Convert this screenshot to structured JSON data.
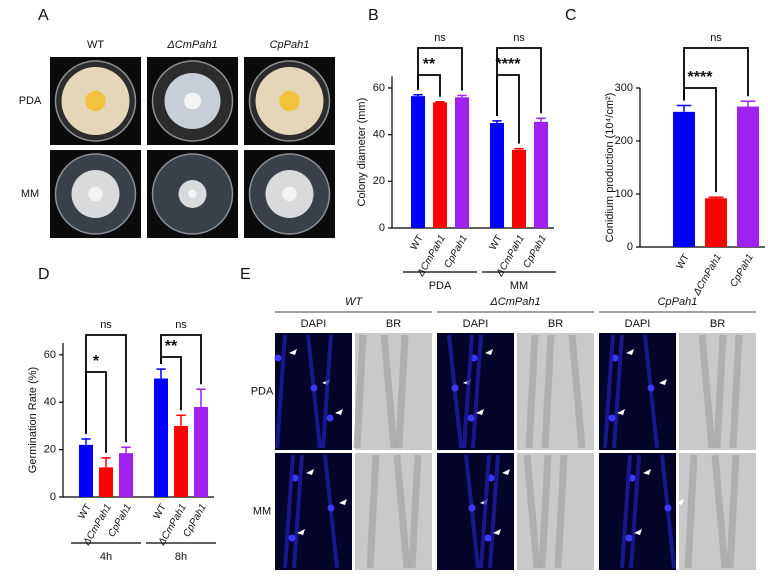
{
  "figure": {
    "panel_labels": [
      "A",
      "B",
      "C",
      "D",
      "E"
    ],
    "A": {
      "columns": [
        "WT",
        "ΔCmPah1",
        "CpPah1"
      ],
      "rows": [
        "PDA",
        "MM"
      ]
    },
    "E": {
      "strains": [
        "WT",
        "ΔCmPah1",
        "CpPah1"
      ],
      "channels": [
        "DAPI",
        "BR"
      ],
      "rows": [
        "PDA",
        "MM"
      ]
    }
  },
  "chart_data": [
    {
      "type": "bar",
      "ylabel": "Colony diameter (mm)",
      "groups": [
        "PDA",
        "MM"
      ],
      "ylim": [
        0,
        65
      ],
      "yticks": [
        0,
        20,
        40,
        60
      ],
      "series": [
        {
          "name": "WT",
          "color": "#0000ff",
          "values": [
            56.5,
            45
          ],
          "error": [
            0.6,
            0.9
          ]
        },
        {
          "name": "ΔCmPah1",
          "color": "#ff0000",
          "values": [
            53.8,
            33.5
          ],
          "error": [
            0.3,
            0.5
          ]
        },
        {
          "name": "CpPah1",
          "color": "#a020f0",
          "values": [
            56,
            45.5
          ],
          "error": [
            0.8,
            1.5
          ]
        }
      ],
      "annotations": [
        [
          "**",
          "ns"
        ],
        [
          "****",
          "ns"
        ]
      ]
    },
    {
      "type": "bar",
      "ylabel": "Conidium production (10⁴/cm²)",
      "ylim": [
        0,
        300
      ],
      "yticks": [
        0,
        100,
        200,
        300
      ],
      "series": [
        {
          "name": "WT",
          "color": "#0000ff",
          "values": [
            255
          ],
          "error": [
            12
          ]
        },
        {
          "name": "ΔCmPah1",
          "color": "#ff0000",
          "values": [
            92
          ],
          "error": [
            2
          ]
        },
        {
          "name": "CpPah1",
          "color": "#a020f0",
          "values": [
            265
          ],
          "error": [
            10
          ]
        }
      ],
      "annotations": [
        [
          "****",
          "ns"
        ]
      ]
    },
    {
      "type": "bar",
      "ylabel": "Germination Rate (%)",
      "groups": [
        "4h",
        "8h"
      ],
      "ylim": [
        0,
        65
      ],
      "yticks": [
        0,
        20,
        40,
        60
      ],
      "series": [
        {
          "name": "WT",
          "color": "#0000ff",
          "values": [
            22,
            50
          ],
          "error": [
            2.5,
            4
          ]
        },
        {
          "name": "ΔCmPah1",
          "color": "#ff0000",
          "values": [
            12.5,
            30
          ],
          "error": [
            4,
            4.5
          ]
        },
        {
          "name": "CpPah1",
          "color": "#a020f0",
          "values": [
            18.5,
            38
          ],
          "error": [
            2.5,
            7.5
          ]
        }
      ],
      "annotations": [
        [
          "*",
          "ns"
        ],
        [
          "**",
          "ns"
        ]
      ]
    }
  ]
}
